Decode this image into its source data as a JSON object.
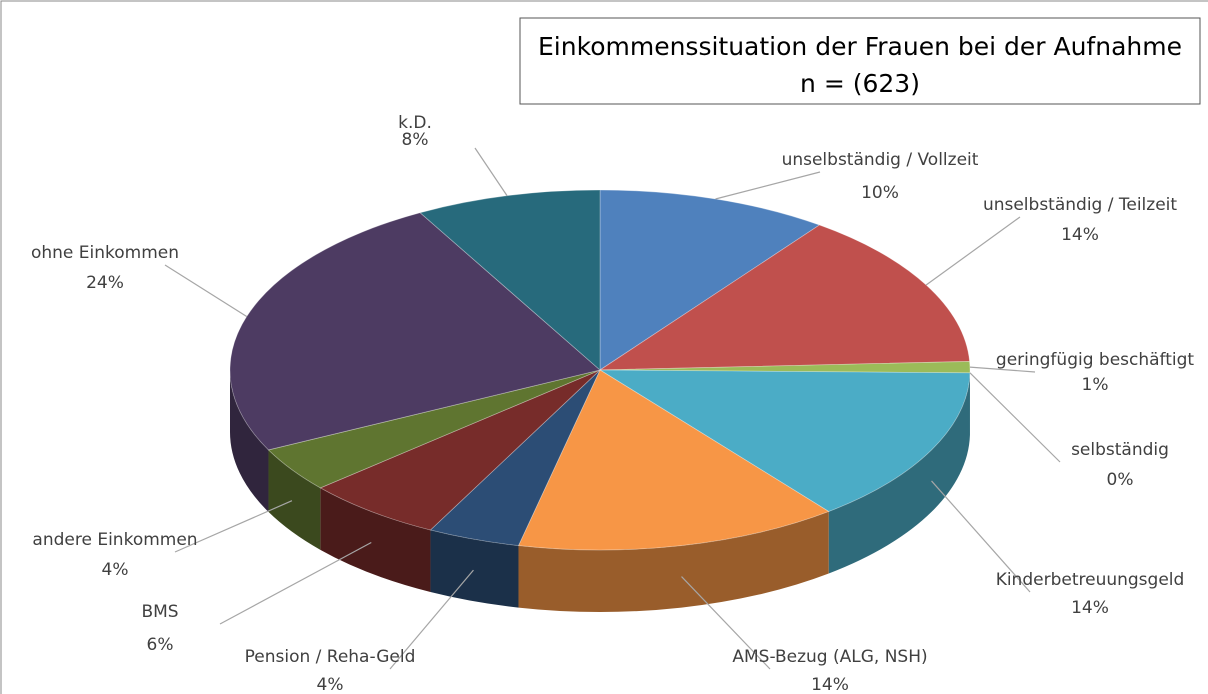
{
  "chart_data": {
    "type": "pie",
    "title": "Einkommenssituation der Frauen bei der Aufnahme",
    "subtitle": "n = (623)",
    "categories": [
      "unselbständig / Vollzeit",
      "unselbständig / Teilzeit",
      "geringfügig beschäftigt",
      "selbständig",
      "Kinderbetreuungsgeld",
      "AMS-Bezug (ALG, NSH)",
      "Pension / Reha-Geld",
      "BMS",
      "andere Einkommen",
      "ohne Einkommen",
      "k.D."
    ],
    "values": [
      10,
      14,
      1,
      0,
      14,
      14,
      4,
      6,
      4,
      24,
      8
    ],
    "value_labels": [
      "10%",
      "14%",
      "1%",
      "0%",
      "14%",
      "14%",
      "4%",
      "6%",
      "4%",
      "24%",
      "8%"
    ],
    "colors": [
      "#4f81bd",
      "#c0504d",
      "#9bbb59",
      "#8064a2",
      "#4bacc6",
      "#f79646",
      "#2c4d75",
      "#772c2a",
      "#5f7530",
      "#4d3b62",
      "#276a7c"
    ]
  }
}
